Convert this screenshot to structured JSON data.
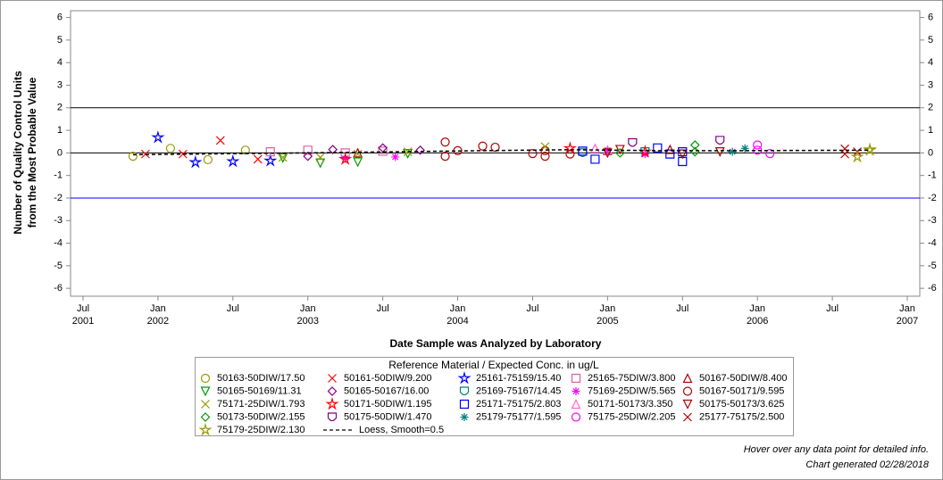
{
  "chart_data": {
    "type": "scatter",
    "x_label": "Date Sample was Analyzed by Laboratory",
    "y_label": [
      "Number of Quality Control Units",
      "from the Most Probable Value"
    ],
    "legend_title": "Reference Material / Expected Conc. in ug/L",
    "footnotes": [
      "Hover over any data point for detailed info.",
      "Chart generated 02/28/2018"
    ],
    "xlim": [
      "2001-06",
      "2007-02"
    ],
    "xticks": [
      {
        "value": "2001-07",
        "label": [
          "Jul",
          "2001"
        ]
      },
      {
        "value": "2002-01",
        "label": [
          "Jan",
          "2002"
        ]
      },
      {
        "value": "2002-07",
        "label": "Jul"
      },
      {
        "value": "2003-01",
        "label": [
          "Jan",
          "2003"
        ]
      },
      {
        "value": "2003-07",
        "label": "Jul"
      },
      {
        "value": "2004-01",
        "label": [
          "Jan",
          "2004"
        ]
      },
      {
        "value": "2004-07",
        "label": "Jul"
      },
      {
        "value": "2005-01",
        "label": [
          "Jan",
          "2005"
        ]
      },
      {
        "value": "2005-07",
        "label": "Jul"
      },
      {
        "value": "2006-01",
        "label": [
          "Jan",
          "2006"
        ]
      },
      {
        "value": "2006-07",
        "label": "Jul"
      },
      {
        "value": "2007-01",
        "label": [
          "Jan",
          "2007"
        ]
      }
    ],
    "ylim": [
      -6.35,
      6.3
    ],
    "yticks": [
      -6,
      -5,
      -4,
      -3,
      -2,
      -1,
      0,
      1,
      2,
      3,
      4,
      5,
      6
    ],
    "reference_lines": [
      {
        "value": 2,
        "color": "#000000"
      },
      {
        "value": 0,
        "color": "#000000"
      },
      {
        "value": -2,
        "color": "#0000ff"
      }
    ],
    "series": [
      {
        "name": "50163-50DIW/17.50",
        "color": "#999900",
        "symbol": "circle",
        "x": [
          "2001-11",
          "2002-02",
          "2002-05",
          "2002-08"
        ],
        "values": [
          -0.15,
          0.2,
          -0.3,
          0.12
        ]
      },
      {
        "name": "50161-50DIW/9.200",
        "color": "#ff0000",
        "symbol": "x",
        "x": [
          "2001-12",
          "2002-03",
          "2002-06",
          "2002-09"
        ],
        "values": [
          -0.05,
          -0.05,
          0.55,
          -0.28
        ]
      },
      {
        "name": "25161-75159/15.40",
        "color": "#0000ff",
        "symbol": "star",
        "x": [
          "2002-01",
          "2002-04",
          "2002-07",
          "2002-10"
        ],
        "values": [
          0.68,
          -0.42,
          -0.38,
          -0.35
        ]
      },
      {
        "name": "25165-75DIW/3.800",
        "color": "#e060a0",
        "symbol": "square",
        "x": [
          "2002-10",
          "2003-01",
          "2003-04",
          "2003-07"
        ],
        "values": [
          0.05,
          0.12,
          0,
          0.08
        ]
      },
      {
        "name": "50167-50DIW/8.400",
        "color": "#b00000",
        "symbol": "triangle-up",
        "x": [
          "2003-05",
          "2005-01",
          "2005-06"
        ],
        "values": [
          0,
          0.1,
          0.15
        ]
      },
      {
        "name": "50165-50169/11.31",
        "color": "#009900",
        "symbol": "triangle-down",
        "x": [
          "2002-11",
          "2003-02",
          "2003-05",
          "2003-09"
        ],
        "values": [
          -0.22,
          -0.45,
          -0.4,
          -0.03
        ]
      },
      {
        "name": "50165-50167/16.00",
        "color": "#800080",
        "symbol": "diamond",
        "x": [
          "2003-01",
          "2003-03",
          "2003-07",
          "2003-10"
        ],
        "values": [
          -0.15,
          0.15,
          0.22,
          0.12
        ]
      },
      {
        "name": "25169-75167/14.45",
        "color": "#008080",
        "symbol": "cup",
        "x": [
          "2004-11",
          "2005-04"
        ],
        "values": [
          0,
          0.05
        ]
      },
      {
        "name": "75169-25DIW/5.565",
        "color": "#ff00ff",
        "symbol": "asterisk",
        "x": [
          "2003-04",
          "2003-08",
          "2005-01",
          "2005-04"
        ],
        "values": [
          -0.25,
          -0.18,
          0.12,
          -0.05
        ]
      },
      {
        "name": "50167-50171/9.595",
        "color": "#b00000",
        "symbol": "circle",
        "x": [
          "2003-12",
          "2003-12",
          "2004-01",
          "2004-03",
          "2004-04",
          "2004-07",
          "2004-08",
          "2004-08",
          "2004-10"
        ],
        "values": [
          0.48,
          -0.15,
          0.1,
          0.3,
          0.25,
          -0.03,
          0.1,
          -0.15,
          -0.05
        ]
      },
      {
        "name": "75171-25DIW/1.793",
        "color": "#999900",
        "symbol": "x",
        "x": [
          "2002-11",
          "2003-02",
          "2003-05",
          "2003-09",
          "2004-08"
        ],
        "values": [
          -0.2,
          -0.2,
          -0.05,
          0.05,
          0.28
        ]
      },
      {
        "name": "50171-50DIW/1.195",
        "color": "#ff0000",
        "symbol": "star",
        "x": [
          "2003-04",
          "2004-10",
          "2005-04"
        ],
        "values": [
          -0.28,
          0.2,
          0.05
        ]
      },
      {
        "name": "25171-75175/2.803",
        "color": "#0000ff",
        "symbol": "square",
        "x": [
          "2004-11",
          "2004-12",
          "2005-05",
          "2005-06",
          "2005-07",
          "2005-07"
        ],
        "values": [
          0.08,
          -0.28,
          0.22,
          -0.05,
          -0.38,
          0.05
        ]
      },
      {
        "name": "50171-50173/3.350",
        "color": "#ff66cc",
        "symbol": "triangle-up",
        "x": [
          "2004-12",
          "2005-01"
        ],
        "values": [
          0.2,
          0.12
        ]
      },
      {
        "name": "50175-50173/3.625",
        "color": "#b00000",
        "symbol": "triangle-down",
        "x": [
          "2005-01",
          "2005-02",
          "2005-07",
          "2005-10"
        ],
        "values": [
          0,
          0.15,
          -0.05,
          0.05
        ]
      },
      {
        "name": "50173-50DIW/2.155",
        "color": "#009900",
        "symbol": "diamond",
        "x": [
          "2005-02",
          "2005-08",
          "2005-08"
        ],
        "values": [
          0,
          0.35,
          0.05
        ]
      },
      {
        "name": "50175-50DIW/1.470",
        "color": "#800080",
        "symbol": "cup",
        "x": [
          "2005-03",
          "2005-10"
        ],
        "values": [
          0.45,
          0.55
        ]
      },
      {
        "name": "25179-75177/1.595",
        "color": "#008080",
        "symbol": "asterisk",
        "x": [
          "2005-11",
          "2005-12"
        ],
        "values": [
          0.05,
          0.2
        ]
      },
      {
        "name": "75175-25DIW/2.205",
        "color": "#ff00ff",
        "symbol": "circle",
        "x": [
          "2006-01",
          "2006-01",
          "2006-02"
        ],
        "values": [
          0.12,
          0.35,
          -0.03
        ]
      },
      {
        "name": "25177-75175/2.500",
        "color": "#b00000",
        "symbol": "x",
        "x": [
          "2006-08",
          "2006-09",
          "2006-08"
        ],
        "values": [
          0.18,
          0.05,
          -0.05
        ]
      },
      {
        "name": "75179-25DIW/2.130",
        "color": "#999900",
        "symbol": "star",
        "x": [
          "2006-09",
          "2006-10",
          "2006-10"
        ],
        "values": [
          -0.18,
          0.12,
          0.15
        ]
      },
      {
        "name": "Loess, Smooth=0.5",
        "color": "#000000",
        "line_style": "dashed",
        "x": [
          "2001-11",
          "2002-06",
          "2003-01",
          "2003-08",
          "2004-03",
          "2004-10",
          "2005-05",
          "2005-12",
          "2006-10"
        ],
        "values": [
          -0.08,
          -0.04,
          0,
          0.05,
          0.1,
          0.14,
          0.1,
          0.1,
          0.12
        ]
      }
    ]
  }
}
